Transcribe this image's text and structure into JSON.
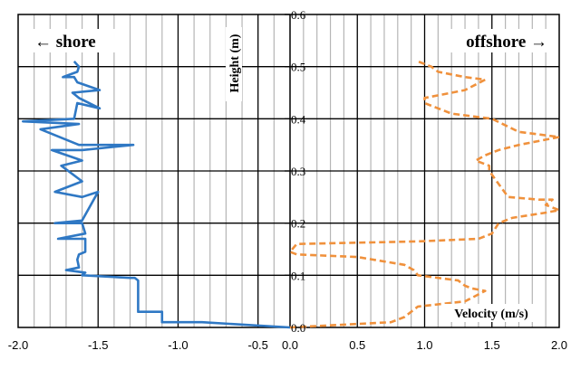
{
  "chart_data": {
    "type": "line",
    "ylabel": "Height (m)",
    "xlabel": "Velocity (m/s)",
    "ylim": [
      0,
      0.6
    ],
    "y_ticks": [
      "0.0",
      "0.1",
      "0.2",
      "0.3",
      "0.4",
      "0.5",
      "0.6"
    ],
    "grid": true,
    "panels": [
      {
        "direction_label": "← shore",
        "xlim": [
          -2.0,
          -0.3
        ],
        "x_ticks": [
          "-2.0",
          "-1.5",
          "-1.0",
          "-0.5"
        ],
        "line_color": "#2f78c4",
        "line_style": "solid",
        "series": {
          "x": [
            -0.3,
            -0.85,
            -1.1,
            -1.1,
            -1.25,
            -1.25,
            -1.27,
            -1.3,
            -1.6,
            -1.58,
            -1.7,
            -1.62,
            -1.63,
            -1.62,
            -1.58,
            -1.58,
            -1.75,
            -1.58,
            -1.6,
            -1.77,
            -1.6,
            -1.5,
            -1.6,
            -1.77,
            -1.6,
            -1.73,
            -1.6,
            -1.79,
            -1.6,
            -1.28,
            -1.62,
            -1.86,
            -1.62,
            -1.97,
            -1.65,
            -1.63,
            -1.49,
            -1.62,
            -1.66,
            -1.49,
            -1.63,
            -1.65,
            -1.72,
            -1.63,
            -1.62,
            -1.65
          ],
          "y": [
            0.0,
            0.01,
            0.01,
            0.03,
            0.03,
            0.09,
            0.095,
            0.095,
            0.1,
            0.105,
            0.11,
            0.115,
            0.13,
            0.14,
            0.145,
            0.17,
            0.17,
            0.18,
            0.2,
            0.2,
            0.205,
            0.26,
            0.25,
            0.26,
            0.28,
            0.31,
            0.32,
            0.34,
            0.34,
            0.35,
            0.35,
            0.38,
            0.39,
            0.395,
            0.4,
            0.43,
            0.42,
            0.44,
            0.45,
            0.455,
            0.47,
            0.48,
            0.48,
            0.49,
            0.5,
            0.51
          ]
        }
      },
      {
        "direction_label": "offshore →",
        "xlim": [
          0.0,
          2.0
        ],
        "x_ticks": [
          "0.0",
          "0.5",
          "1.0",
          "1.5",
          "2.0"
        ],
        "line_color": "#f0913c",
        "line_style": "dashed",
        "series": {
          "x": [
            0.0,
            0.75,
            0.85,
            0.95,
            1.3,
            1.45,
            1.35,
            1.3,
            1.25,
            0.95,
            0.92,
            0.85,
            0.5,
            0.05,
            0.0,
            0.05,
            0.95,
            1.4,
            1.5,
            1.55,
            1.65,
            1.9,
            2.0,
            1.9,
            1.95,
            1.85,
            1.62,
            1.48,
            1.48,
            1.38,
            1.45,
            1.55,
            1.7,
            1.9,
            2.0,
            1.7,
            1.5,
            1.2,
            1.1,
            1.0,
            1.0,
            1.1,
            1.2,
            1.3,
            1.45,
            1.3,
            1.1,
            1.05,
            0.95
          ],
          "y": [
            0.0,
            0.01,
            0.02,
            0.04,
            0.05,
            0.07,
            0.075,
            0.08,
            0.09,
            0.1,
            0.11,
            0.12,
            0.135,
            0.14,
            0.145,
            0.16,
            0.165,
            0.17,
            0.18,
            0.2,
            0.21,
            0.22,
            0.225,
            0.235,
            0.245,
            0.245,
            0.25,
            0.3,
            0.31,
            0.32,
            0.33,
            0.34,
            0.35,
            0.36,
            0.365,
            0.375,
            0.4,
            0.41,
            0.42,
            0.43,
            0.44,
            0.445,
            0.45,
            0.455,
            0.475,
            0.48,
            0.49,
            0.5,
            0.51
          ]
        }
      }
    ]
  }
}
